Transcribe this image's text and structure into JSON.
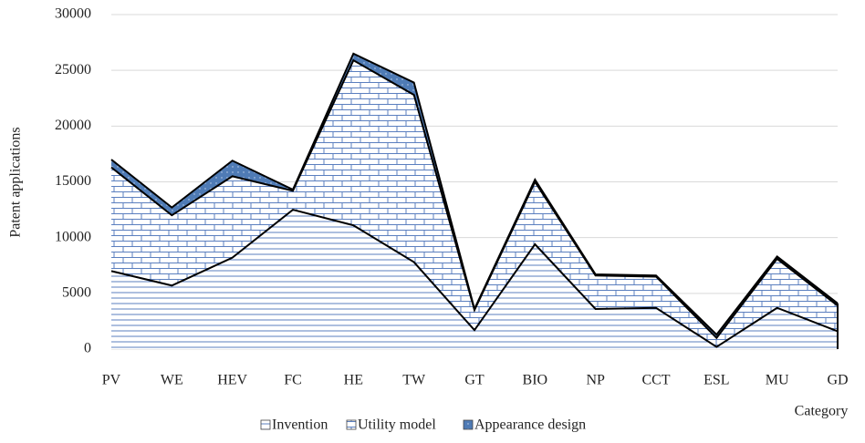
{
  "chart_data": {
    "type": "stacked_area",
    "y_label": "Patent applications",
    "x_label": "Category",
    "categories": [
      "PV",
      "WE",
      "HEV",
      "FC",
      "HE",
      "TW",
      "GT",
      "BIO",
      "NP",
      "CCT",
      "ESL",
      "MU",
      "GD"
    ],
    "series": [
      {
        "name": "Invention",
        "color": "#5b7fbf",
        "values": [
          7000,
          5700,
          8200,
          12500,
          11100,
          7800,
          1700,
          9400,
          3600,
          3700,
          200,
          3700,
          1600
        ]
      },
      {
        "name": "Utility model",
        "color": "#5b7fbf",
        "values": [
          9300,
          6300,
          7300,
          1700,
          14800,
          15000,
          1800,
          5600,
          3000,
          2800,
          800,
          4400,
          2300
        ]
      },
      {
        "name": "Appearance design",
        "color": "#4f7bb5",
        "values": [
          700,
          700,
          1400,
          100,
          600,
          1100,
          100,
          200,
          100,
          100,
          300,
          200,
          200
        ]
      }
    ],
    "ylim": [
      0,
      30000
    ],
    "yticks": [
      0,
      5000,
      10000,
      15000,
      20000,
      25000,
      30000
    ],
    "grid": true,
    "legend": "bottom"
  }
}
